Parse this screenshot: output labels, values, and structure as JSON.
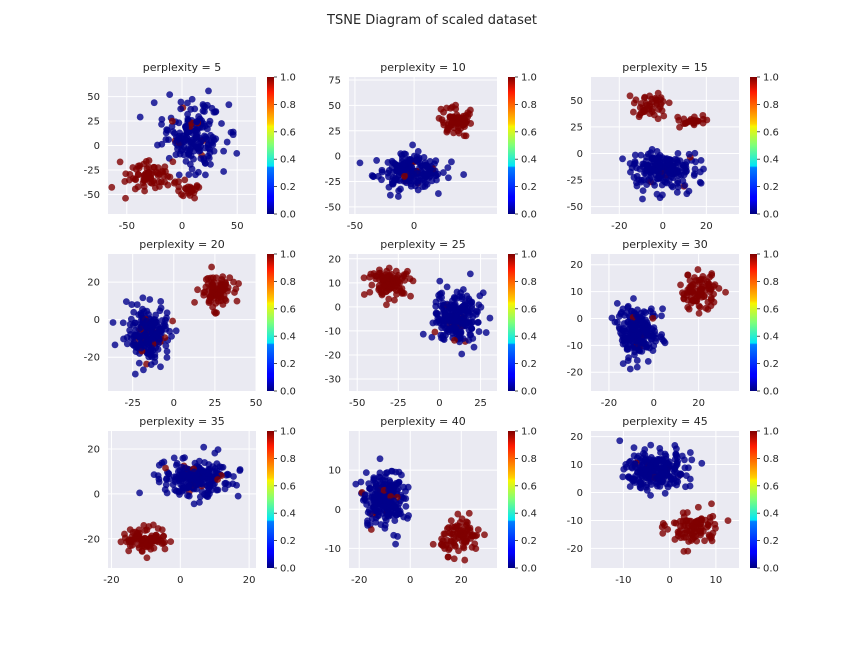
{
  "figure": {
    "title": "TSNE Diagram of scaled dataset"
  },
  "colors": {
    "axes_background": "#eaeaf2",
    "grid": "#ffffff",
    "class_0": "#00008b",
    "class_1": "#800000",
    "colormap": "jet"
  },
  "chart_data": [
    {
      "type": "scatter",
      "title": "perplexity = 5",
      "xlim": [
        -67,
        67
      ],
      "ylim": [
        -70,
        70
      ],
      "xticks": [
        -50,
        0,
        50
      ],
      "yticks": [
        -50,
        -25,
        0,
        25,
        50
      ],
      "grid": true,
      "colorbar": {
        "range": [
          0,
          1
        ],
        "ticks": [
          0.0,
          0.2,
          0.4,
          0.6,
          0.8,
          1.0
        ],
        "colormap": "jet"
      },
      "clusters": [
        {
          "label": 0,
          "center": [
            10,
            10
          ],
          "spread": [
            25,
            30
          ],
          "n": 190
        },
        {
          "label": 1,
          "center": [
            -30,
            -30
          ],
          "spread": [
            18,
            15
          ],
          "n": 70
        },
        {
          "label": 1,
          "center": [
            5,
            -45
          ],
          "spread": [
            8,
            8
          ],
          "n": 25
        }
      ]
    },
    {
      "type": "scatter",
      "title": "perplexity = 10",
      "xlim": [
        -55,
        70
      ],
      "ylim": [
        -57,
        78
      ],
      "xticks": [
        -50,
        0
      ],
      "yticks": [
        -50,
        -25,
        0,
        25,
        50,
        75
      ],
      "grid": true,
      "colorbar": {
        "range": [
          0,
          1
        ],
        "ticks": [
          0.0,
          0.2,
          0.4,
          0.6,
          0.8,
          1.0
        ],
        "colormap": "jet"
      },
      "clusters": [
        {
          "label": 0,
          "center": [
            -5,
            -15
          ],
          "spread": [
            26,
            15
          ],
          "n": 200
        },
        {
          "label": 1,
          "center": [
            35,
            35
          ],
          "spread": [
            14,
            13
          ],
          "n": 75
        }
      ]
    },
    {
      "type": "scatter",
      "title": "perplexity = 15",
      "xlim": [
        -33,
        35
      ],
      "ylim": [
        -57,
        72
      ],
      "xticks": [
        -20,
        0,
        20
      ],
      "yticks": [
        -50,
        -25,
        0,
        25,
        50
      ],
      "grid": true,
      "colorbar": {
        "range": [
          0,
          1
        ],
        "ticks": [
          0.0,
          0.2,
          0.4,
          0.6,
          0.8,
          1.0
        ],
        "colormap": "jet"
      },
      "clusters": [
        {
          "label": 0,
          "center": [
            0,
            -15
          ],
          "spread": [
            15,
            15
          ],
          "n": 200
        },
        {
          "label": 1,
          "center": [
            -5,
            45
          ],
          "spread": [
            7,
            10
          ],
          "n": 45
        },
        {
          "label": 1,
          "center": [
            13,
            30
          ],
          "spread": [
            6,
            5
          ],
          "n": 25
        }
      ]
    },
    {
      "type": "scatter",
      "title": "perplexity = 20",
      "xlim": [
        -40,
        50
      ],
      "ylim": [
        -38,
        35
      ],
      "xticks": [
        -25,
        0,
        25,
        50
      ],
      "yticks": [
        -20,
        0,
        20
      ],
      "grid": true,
      "colorbar": {
        "range": [
          0,
          1
        ],
        "ticks": [
          0.0,
          0.2,
          0.4,
          0.6,
          0.8,
          1.0
        ],
        "colormap": "jet"
      },
      "clusters": [
        {
          "label": 0,
          "center": [
            -15,
            -8
          ],
          "spread": [
            12,
            13
          ],
          "n": 220
        },
        {
          "label": 1,
          "center": [
            25,
            15
          ],
          "spread": [
            9,
            8
          ],
          "n": 90
        }
      ]
    },
    {
      "type": "scatter",
      "title": "perplexity = 25",
      "xlim": [
        -55,
        35
      ],
      "ylim": [
        -35,
        22
      ],
      "xticks": [
        -50,
        -25,
        0,
        25
      ],
      "yticks": [
        -30,
        -20,
        -10,
        0,
        10,
        20
      ],
      "grid": true,
      "colorbar": {
        "range": [
          0,
          1
        ],
        "ticks": [
          0.0,
          0.2,
          0.4,
          0.6,
          0.8,
          1.0
        ],
        "colormap": "jet"
      },
      "clusters": [
        {
          "label": 0,
          "center": [
            10,
            -5
          ],
          "spread": [
            12,
            10
          ],
          "n": 220
        },
        {
          "label": 1,
          "center": [
            -30,
            10
          ],
          "spread": [
            12,
            5
          ],
          "n": 100
        }
      ]
    },
    {
      "type": "scatter",
      "title": "perplexity = 30",
      "xlim": [
        -28,
        38
      ],
      "ylim": [
        -27,
        24
      ],
      "xticks": [
        -20,
        0,
        20
      ],
      "yticks": [
        -20,
        -10,
        0,
        10,
        20
      ],
      "grid": true,
      "colorbar": {
        "range": [
          0,
          1
        ],
        "ticks": [
          0.0,
          0.2,
          0.4,
          0.6,
          0.8,
          1.0
        ],
        "colormap": "jet"
      },
      "clusters": [
        {
          "label": 0,
          "center": [
            -7,
            -5
          ],
          "spread": [
            8,
            9
          ],
          "n": 220
        },
        {
          "label": 1,
          "center": [
            20,
            10
          ],
          "spread": [
            8,
            6
          ],
          "n": 90
        }
      ]
    },
    {
      "type": "scatter",
      "title": "perplexity = 35",
      "xlim": [
        -21,
        22
      ],
      "ylim": [
        -33,
        28
      ],
      "xticks": [
        -20,
        0,
        20
      ],
      "yticks": [
        -20,
        0,
        20
      ],
      "grid": true,
      "colorbar": {
        "range": [
          0,
          1
        ],
        "ticks": [
          0.0,
          0.2,
          0.4,
          0.6,
          0.8,
          1.0
        ],
        "colormap": "jet"
      },
      "clusters": [
        {
          "label": 0,
          "center": [
            5,
            7
          ],
          "spread": [
            9,
            7
          ],
          "n": 230
        },
        {
          "label": 1,
          "center": [
            -10,
            -20
          ],
          "spread": [
            6,
            5
          ],
          "n": 90
        }
      ]
    },
    {
      "type": "scatter",
      "title": "perplexity = 40",
      "xlim": [
        -24,
        34
      ],
      "ylim": [
        -15,
        20
      ],
      "xticks": [
        -20,
        0,
        20
      ],
      "yticks": [
        -10,
        0,
        10
      ],
      "grid": true,
      "colorbar": {
        "range": [
          0,
          1
        ],
        "ticks": [
          0.0,
          0.2,
          0.4,
          0.6,
          0.8,
          1.0
        ],
        "colormap": "jet"
      },
      "clusters": [
        {
          "label": 0,
          "center": [
            -10,
            3
          ],
          "spread": [
            7,
            7
          ],
          "n": 220
        },
        {
          "label": 1,
          "center": [
            20,
            -7
          ],
          "spread": [
            7,
            4
          ],
          "n": 90
        }
      ]
    },
    {
      "type": "scatter",
      "title": "perplexity = 45",
      "xlim": [
        -17,
        15
      ],
      "ylim": [
        -27,
        22
      ],
      "xticks": [
        -10,
        0,
        10
      ],
      "yticks": [
        -20,
        -10,
        0,
        10,
        20
      ],
      "grid": true,
      "colorbar": {
        "range": [
          0,
          1
        ],
        "ticks": [
          0.0,
          0.2,
          0.4,
          0.6,
          0.8,
          1.0
        ],
        "colormap": "jet"
      },
      "clusters": [
        {
          "label": 0,
          "center": [
            -3,
            8
          ],
          "spread": [
            6,
            6
          ],
          "n": 230
        },
        {
          "label": 1,
          "center": [
            5,
            -13
          ],
          "spread": [
            5,
            6
          ],
          "n": 90
        }
      ]
    }
  ]
}
